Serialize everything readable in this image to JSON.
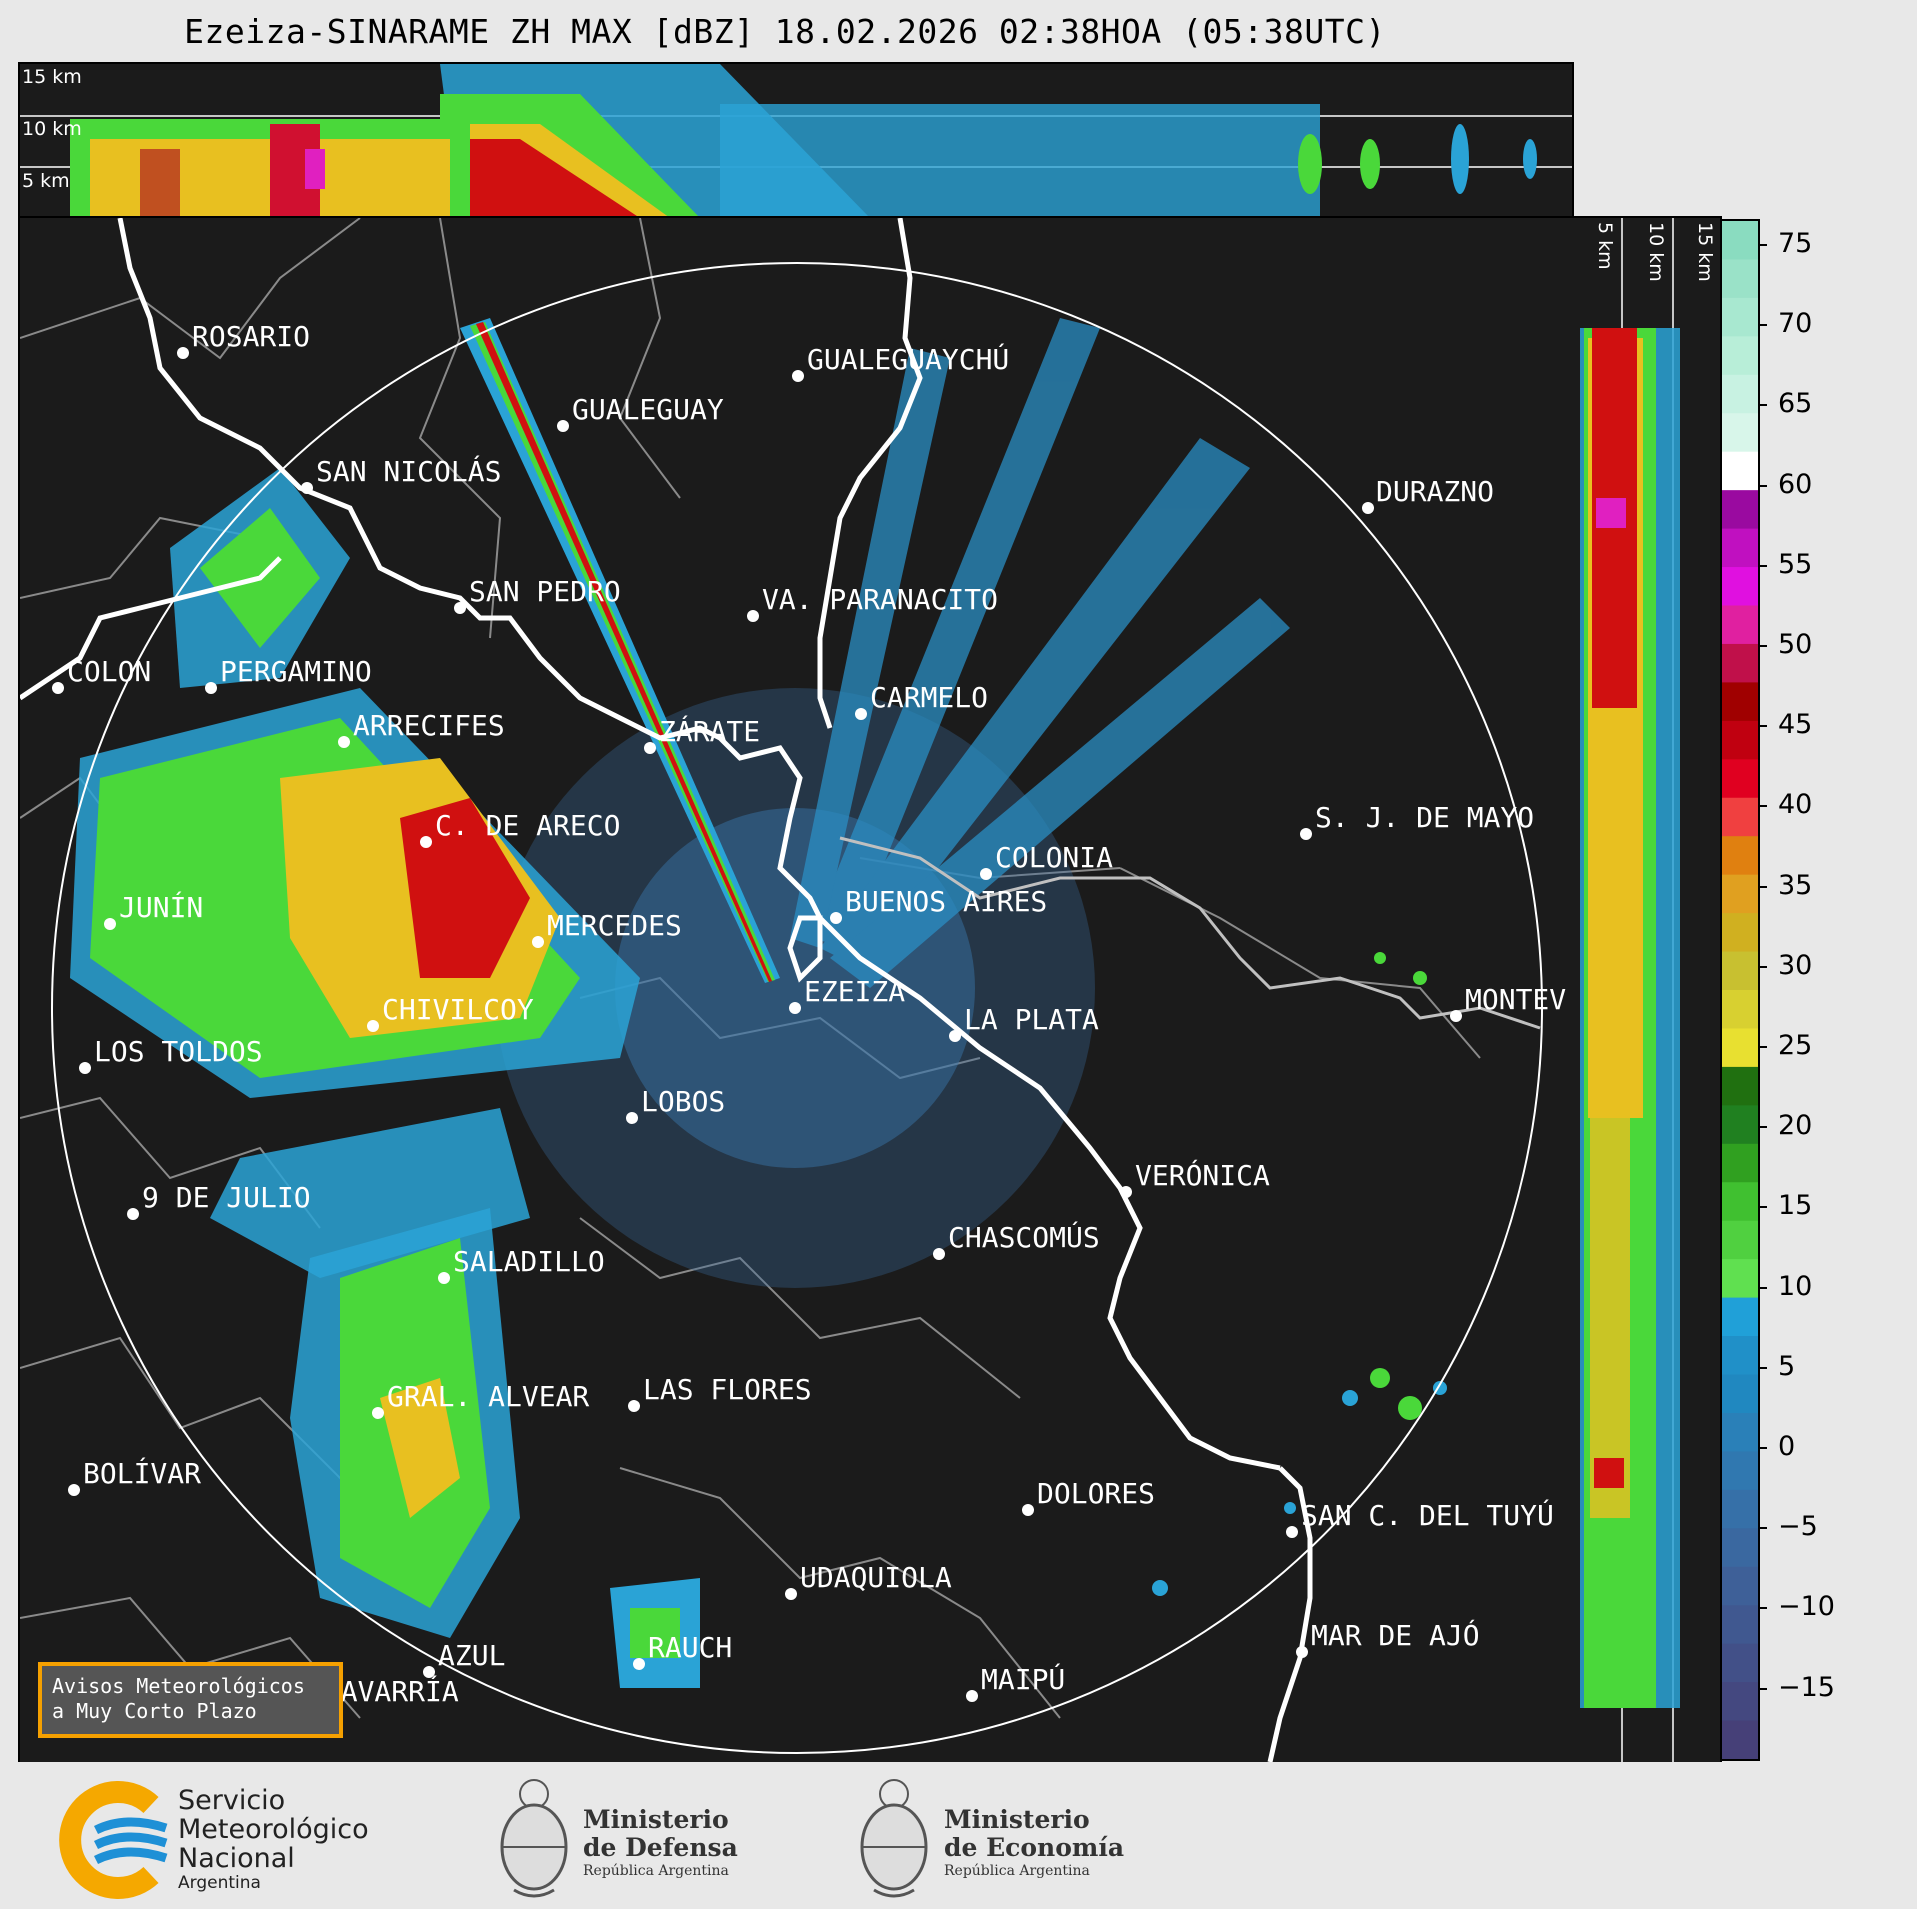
{
  "title": "Ezeiza-SINARAME ZH MAX [dBZ] 18.02.2026 02:38HOA (05:38UTC)",
  "height_labels": [
    "15 km",
    "10 km",
    "5 km"
  ],
  "colorbar": {
    "ticks": [
      "75",
      "70",
      "65",
      "60",
      "55",
      "50",
      "45",
      "40",
      "35",
      "30",
      "25",
      "20",
      "15",
      "10",
      "5",
      "0",
      "−5",
      "−10",
      "−15"
    ]
  },
  "cities": [
    {
      "name": "ROSARIO"
    },
    {
      "name": "GUALEGUAYCHÚ"
    },
    {
      "name": "GUALEGUAY"
    },
    {
      "name": "SAN NICOLÁS"
    },
    {
      "name": "DURAZNO"
    },
    {
      "name": "SAN PEDRO"
    },
    {
      "name": "VA. PARANACITO"
    },
    {
      "name": "COLON"
    },
    {
      "name": "PERGAMINO"
    },
    {
      "name": "CARMELO"
    },
    {
      "name": "ARRECIFES"
    },
    {
      "name": "ZÁRATE"
    },
    {
      "name": "S. J. DE MAYO"
    },
    {
      "name": "C. DE ARECO"
    },
    {
      "name": "COLONIA"
    },
    {
      "name": "BUENOS AIRES"
    },
    {
      "name": "JUNÍN"
    },
    {
      "name": "MERCEDES"
    },
    {
      "name": "EZEIZA"
    },
    {
      "name": "MONTEV"
    },
    {
      "name": "CHIVILCOY"
    },
    {
      "name": "LA PLATA"
    },
    {
      "name": "LOS TOLDOS"
    },
    {
      "name": "LOBOS"
    },
    {
      "name": "VERÓNICA"
    },
    {
      "name": "9 DE JULIO"
    },
    {
      "name": "CHASCOMÚS"
    },
    {
      "name": "SALADILLO"
    },
    {
      "name": "GRAL. ALVEAR"
    },
    {
      "name": "LAS FLORES"
    },
    {
      "name": "BOLÍVAR"
    },
    {
      "name": "DOLORES"
    },
    {
      "name": "SAN C. DEL TUYÚ"
    },
    {
      "name": "UDAQUIOLA"
    },
    {
      "name": "MAR DE AJÓ"
    },
    {
      "name": "RAUCH"
    },
    {
      "name": "AZUL"
    },
    {
      "name": "OLAVARRÍA"
    },
    {
      "name": "MAIPÚ"
    }
  ],
  "notice": {
    "line1": "Avisos Meteorológicos",
    "line2": "a Muy Corto Plazo"
  },
  "logos": {
    "smn": {
      "line1": "Servicio",
      "line2": "Meteorológico",
      "line3": "Nacional",
      "line4": "Argentina"
    },
    "defensa": {
      "line1": "Ministerio",
      "line2": "de Defensa",
      "line3": "República Argentina"
    },
    "economia": {
      "line1": "Ministerio",
      "line2": "de Economía",
      "line3": "República Argentina"
    }
  },
  "colors": {
    "background": "#1b1b1b",
    "accent": "#f5a000",
    "smn_blue": "#1e90d6"
  }
}
